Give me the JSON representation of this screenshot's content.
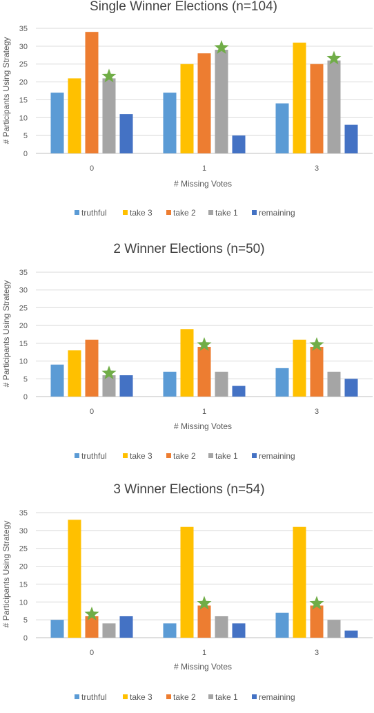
{
  "chart_data": [
    {
      "type": "bar",
      "title": "Single Winner Elections (n=104)",
      "xlabel": "# Missing Votes",
      "ylabel": "# Participants Using Strategy",
      "categories": [
        "0",
        "1",
        "3"
      ],
      "ylim": [
        0,
        35
      ],
      "yticks": [
        0,
        5,
        10,
        15,
        20,
        25,
        30,
        35
      ],
      "grid": true,
      "legend_position": "bottom",
      "series": [
        {
          "name": "truthful",
          "color": "#5B9BD5",
          "values": [
            17,
            17,
            14
          ]
        },
        {
          "name": "take 3",
          "color": "#FFC000",
          "values": [
            21,
            25,
            31
          ]
        },
        {
          "name": "take 2",
          "color": "#ED7D31",
          "values": [
            34,
            28,
            25
          ]
        },
        {
          "name": "take 1",
          "color": "#A5A5A5",
          "values": [
            21,
            29,
            26
          ]
        },
        {
          "name": "remaining",
          "color": "#4472C4",
          "values": [
            11,
            5,
            8
          ]
        }
      ],
      "stars": [
        {
          "category": 0,
          "series": 3
        },
        {
          "category": 1,
          "series": 3
        },
        {
          "category": 2,
          "series": 3
        }
      ]
    },
    {
      "type": "bar",
      "title": "2 Winner Elections (n=50)",
      "xlabel": "# Missing Votes",
      "ylabel": "# Participants Using Strategy",
      "categories": [
        "0",
        "1",
        "3"
      ],
      "ylim": [
        0,
        35
      ],
      "yticks": [
        0,
        5,
        10,
        15,
        20,
        25,
        30,
        35
      ],
      "grid": true,
      "legend_position": "bottom",
      "series": [
        {
          "name": "truthful",
          "color": "#5B9BD5",
          "values": [
            9,
            7,
            8
          ]
        },
        {
          "name": "take 3",
          "color": "#FFC000",
          "values": [
            13,
            19,
            16
          ]
        },
        {
          "name": "take 2",
          "color": "#ED7D31",
          "values": [
            16,
            14,
            14
          ]
        },
        {
          "name": "take 1",
          "color": "#A5A5A5",
          "values": [
            6,
            7,
            7
          ]
        },
        {
          "name": "remaining",
          "color": "#4472C4",
          "values": [
            6,
            3,
            5
          ]
        }
      ],
      "stars": [
        {
          "category": 0,
          "series": 3
        },
        {
          "category": 1,
          "series": 2
        },
        {
          "category": 2,
          "series": 2
        }
      ]
    },
    {
      "type": "bar",
      "title": "3 Winner Elections (n=54)",
      "xlabel": "# Missing Votes",
      "ylabel": "# Participants Using Strategy",
      "categories": [
        "0",
        "1",
        "3"
      ],
      "ylim": [
        0,
        35
      ],
      "yticks": [
        0,
        5,
        10,
        15,
        20,
        25,
        30,
        35
      ],
      "grid": true,
      "legend_position": "bottom",
      "series": [
        {
          "name": "truthful",
          "color": "#5B9BD5",
          "values": [
            5,
            4,
            7
          ]
        },
        {
          "name": "take 3",
          "color": "#FFC000",
          "values": [
            33,
            31,
            31
          ]
        },
        {
          "name": "take 2",
          "color": "#ED7D31",
          "values": [
            6,
            9,
            9
          ]
        },
        {
          "name": "take 1",
          "color": "#A5A5A5",
          "values": [
            4,
            6,
            5
          ]
        },
        {
          "name": "remaining",
          "color": "#4472C4",
          "values": [
            6,
            4,
            2
          ]
        }
      ],
      "stars": [
        {
          "category": 0,
          "series": 2
        },
        {
          "category": 1,
          "series": 2
        },
        {
          "category": 2,
          "series": 2
        }
      ]
    }
  ],
  "star_color": "#70AD47"
}
